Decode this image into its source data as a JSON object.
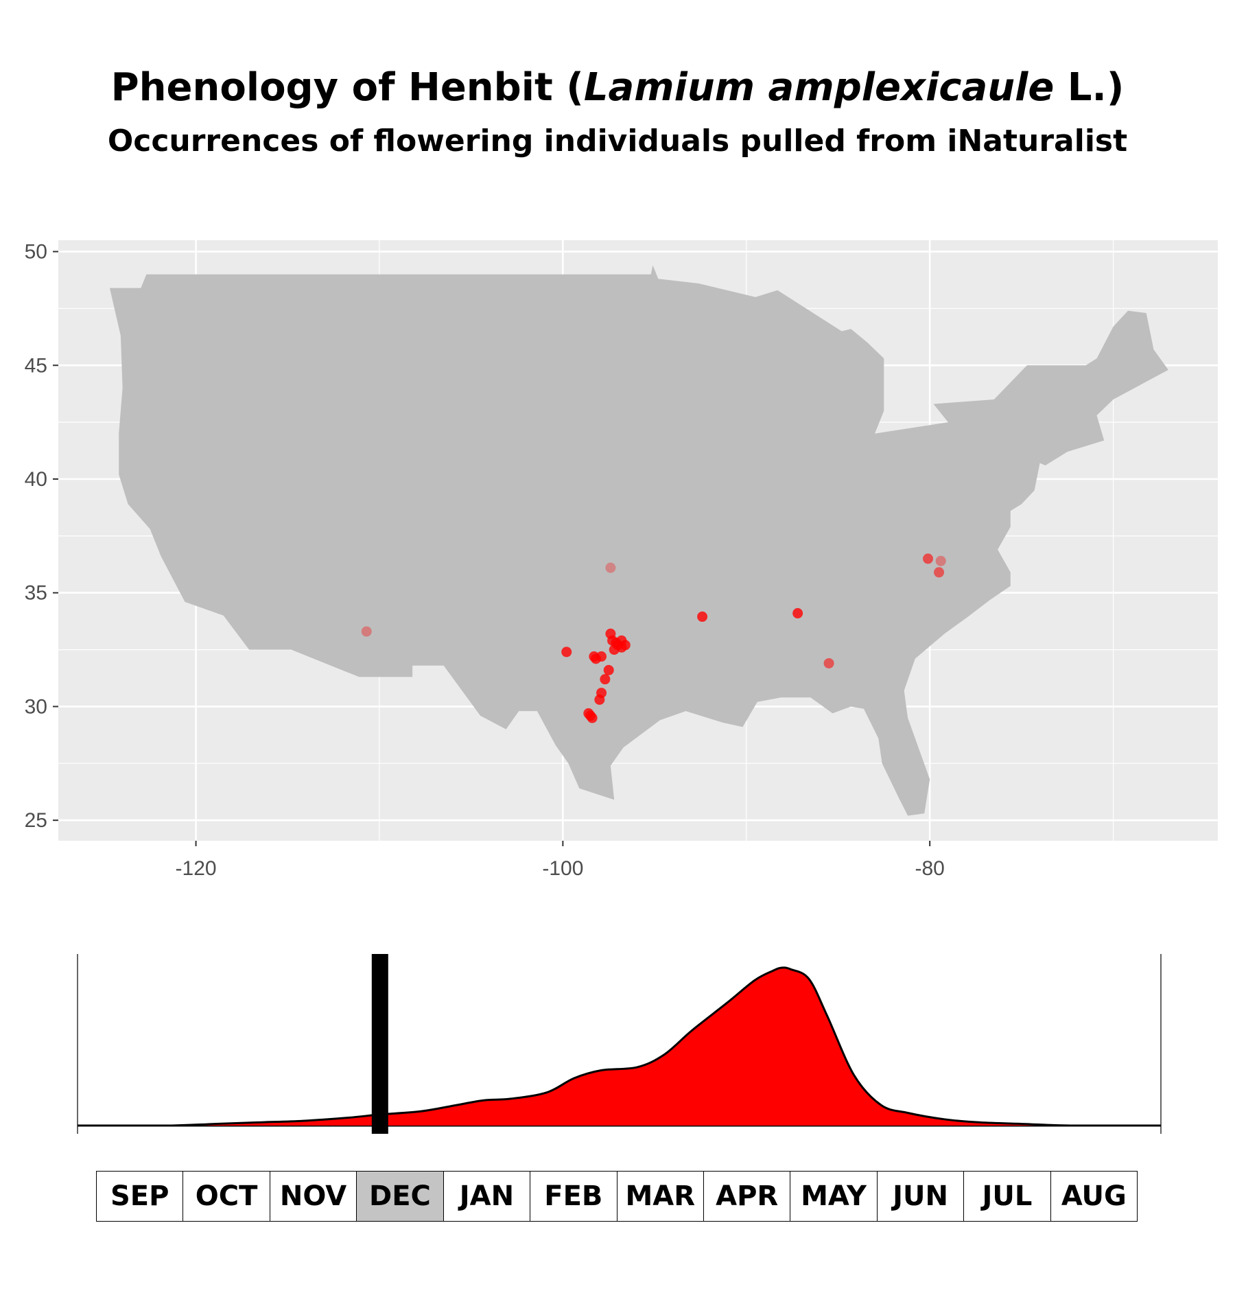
{
  "title": {
    "prefix": "Phenology of Henbit (",
    "species": "Lamium amplexicaule",
    "suffix": " L.)"
  },
  "subtitle": "Occurrences of flowering individuals pulled from iNaturalist",
  "chart_data": [
    {
      "type": "scatter",
      "background": "#ebebeb",
      "land_color": "#bebebe",
      "point_color": "#ff0000",
      "grid": true,
      "xlim": [
        -127.5,
        -64.3
      ],
      "ylim": [
        24.1,
        50.5
      ],
      "x_ticks": [
        -120,
        -100,
        -80
      ],
      "x_tick_labels": [
        "-120",
        "-100",
        "-80"
      ],
      "y_ticks": [
        25,
        30,
        35,
        40,
        45,
        50
      ],
      "y_tick_labels": [
        "25",
        "30",
        "35",
        "40",
        "45",
        "50"
      ],
      "map_outline": [
        [
          -124.7,
          48.4
        ],
        [
          -123.0,
          48.4
        ],
        [
          -122.7,
          49.0
        ],
        [
          -95.2,
          49.0
        ],
        [
          -95.1,
          49.4
        ],
        [
          -94.8,
          48.8
        ],
        [
          -92.6,
          48.6
        ],
        [
          -89.5,
          48.0
        ],
        [
          -88.3,
          48.3
        ],
        [
          -84.8,
          46.5
        ],
        [
          -84.3,
          46.6
        ],
        [
          -83.4,
          46.0
        ],
        [
          -82.5,
          45.3
        ],
        [
          -82.5,
          43.0
        ],
        [
          -83.0,
          42.0
        ],
        [
          -79.0,
          42.5
        ],
        [
          -79.8,
          43.3
        ],
        [
          -76.5,
          43.5
        ],
        [
          -74.7,
          45.0
        ],
        [
          -71.5,
          45.0
        ],
        [
          -70.9,
          45.3
        ],
        [
          -70.0,
          46.7
        ],
        [
          -69.2,
          47.4
        ],
        [
          -68.2,
          47.3
        ],
        [
          -67.8,
          45.7
        ],
        [
          -67.0,
          44.8
        ],
        [
          -70.0,
          43.5
        ],
        [
          -70.9,
          42.8
        ],
        [
          -70.5,
          41.7
        ],
        [
          -72.5,
          41.2
        ],
        [
          -73.7,
          40.6
        ],
        [
          -74.0,
          40.7
        ],
        [
          -74.3,
          39.5
        ],
        [
          -75.0,
          38.9
        ],
        [
          -75.6,
          38.6
        ],
        [
          -75.6,
          37.9
        ],
        [
          -76.3,
          36.9
        ],
        [
          -75.6,
          35.9
        ],
        [
          -75.6,
          35.3
        ],
        [
          -76.7,
          34.7
        ],
        [
          -78.0,
          33.9
        ],
        [
          -79.2,
          33.2
        ],
        [
          -80.8,
          32.1
        ],
        [
          -81.4,
          30.7
        ],
        [
          -81.2,
          29.5
        ],
        [
          -80.0,
          26.8
        ],
        [
          -80.3,
          25.3
        ],
        [
          -81.2,
          25.2
        ],
        [
          -81.7,
          26.0
        ],
        [
          -82.6,
          27.5
        ],
        [
          -82.8,
          28.6
        ],
        [
          -83.6,
          29.9
        ],
        [
          -84.3,
          30.0
        ],
        [
          -85.3,
          29.7
        ],
        [
          -86.5,
          30.4
        ],
        [
          -88.1,
          30.4
        ],
        [
          -89.4,
          30.2
        ],
        [
          -90.2,
          29.1
        ],
        [
          -91.3,
          29.3
        ],
        [
          -93.3,
          29.8
        ],
        [
          -94.7,
          29.4
        ],
        [
          -96.7,
          28.2
        ],
        [
          -97.4,
          27.4
        ],
        [
          -97.2,
          25.9
        ],
        [
          -99.1,
          26.4
        ],
        [
          -99.7,
          27.5
        ],
        [
          -100.4,
          28.3
        ],
        [
          -101.4,
          29.8
        ],
        [
          -102.4,
          29.8
        ],
        [
          -103.1,
          29.0
        ],
        [
          -104.5,
          29.6
        ],
        [
          -106.5,
          31.8
        ],
        [
          -108.2,
          31.8
        ],
        [
          -108.2,
          31.3
        ],
        [
          -111.1,
          31.3
        ],
        [
          -114.8,
          32.5
        ],
        [
          -117.1,
          32.5
        ],
        [
          -118.5,
          34.0
        ],
        [
          -120.6,
          34.6
        ],
        [
          -121.9,
          36.6
        ],
        [
          -122.5,
          37.8
        ],
        [
          -123.7,
          38.9
        ],
        [
          -124.2,
          40.2
        ],
        [
          -124.2,
          42.0
        ],
        [
          -124.0,
          44.0
        ],
        [
          -124.1,
          46.3
        ],
        [
          -124.7,
          48.4
        ]
      ],
      "points": [
        {
          "x": -110.7,
          "y": 33.3,
          "alpha": 0.35
        },
        {
          "x": -97.4,
          "y": 36.1,
          "alpha": 0.3
        },
        {
          "x": -99.8,
          "y": 32.4,
          "alpha": 0.8
        },
        {
          "x": -98.3,
          "y": 32.2,
          "alpha": 0.8
        },
        {
          "x": -98.2,
          "y": 32.1,
          "alpha": 0.8
        },
        {
          "x": -97.9,
          "y": 32.2,
          "alpha": 0.8
        },
        {
          "x": -97.4,
          "y": 33.2,
          "alpha": 0.8
        },
        {
          "x": -97.3,
          "y": 32.9,
          "alpha": 0.8
        },
        {
          "x": -97.1,
          "y": 32.8,
          "alpha": 0.8
        },
        {
          "x": -96.8,
          "y": 32.9,
          "alpha": 0.8
        },
        {
          "x": -97.0,
          "y": 32.7,
          "alpha": 0.8
        },
        {
          "x": -96.8,
          "y": 32.6,
          "alpha": 0.8
        },
        {
          "x": -96.6,
          "y": 32.7,
          "alpha": 0.8
        },
        {
          "x": -97.2,
          "y": 32.5,
          "alpha": 0.8
        },
        {
          "x": -97.5,
          "y": 31.6,
          "alpha": 0.8
        },
        {
          "x": -97.7,
          "y": 31.2,
          "alpha": 0.8
        },
        {
          "x": -97.9,
          "y": 30.6,
          "alpha": 0.8
        },
        {
          "x": -98.0,
          "y": 30.3,
          "alpha": 0.8
        },
        {
          "x": -98.5,
          "y": 29.6,
          "alpha": 0.8
        },
        {
          "x": -98.6,
          "y": 29.7,
          "alpha": 0.8
        },
        {
          "x": -98.4,
          "y": 29.5,
          "alpha": 0.8
        },
        {
          "x": -92.4,
          "y": 33.95,
          "alpha": 0.8
        },
        {
          "x": -87.2,
          "y": 34.1,
          "alpha": 0.8
        },
        {
          "x": -85.5,
          "y": 31.9,
          "alpha": 0.55
        },
        {
          "x": -80.1,
          "y": 36.5,
          "alpha": 0.6
        },
        {
          "x": -79.4,
          "y": 36.4,
          "alpha": 0.35
        },
        {
          "x": -79.5,
          "y": 35.9,
          "alpha": 0.55
        }
      ]
    },
    {
      "type": "area",
      "fill_color": "#ff0000",
      "line_color": "#000000",
      "marker_color": "#000000",
      "x_unit": "month",
      "xlim": [
        0,
        12
      ],
      "ylim": [
        0,
        1
      ],
      "marker_x": 3.35,
      "x": [
        0,
        1.0,
        1.5,
        2.0,
        2.5,
        3.0,
        3.35,
        3.8,
        4.2,
        4.5,
        4.8,
        5.2,
        5.5,
        5.8,
        6.2,
        6.5,
        6.8,
        7.2,
        7.5,
        7.7,
        7.8,
        7.9,
        8.1,
        8.3,
        8.6,
        8.9,
        9.2,
        9.6,
        10.0,
        10.5,
        11.0,
        12.0
      ],
      "y": [
        0,
        0,
        0.01,
        0.02,
        0.03,
        0.05,
        0.07,
        0.09,
        0.13,
        0.16,
        0.17,
        0.21,
        0.3,
        0.35,
        0.37,
        0.45,
        0.6,
        0.78,
        0.92,
        0.98,
        1.0,
        0.99,
        0.93,
        0.7,
        0.32,
        0.13,
        0.08,
        0.04,
        0.02,
        0.01,
        0,
        0
      ]
    }
  ],
  "months": [
    "SEP",
    "OCT",
    "NOV",
    "DEC",
    "JAN",
    "FEB",
    "MAR",
    "APR",
    "MAY",
    "JUN",
    "JUL",
    "AUG"
  ],
  "highlighted_month": "DEC"
}
